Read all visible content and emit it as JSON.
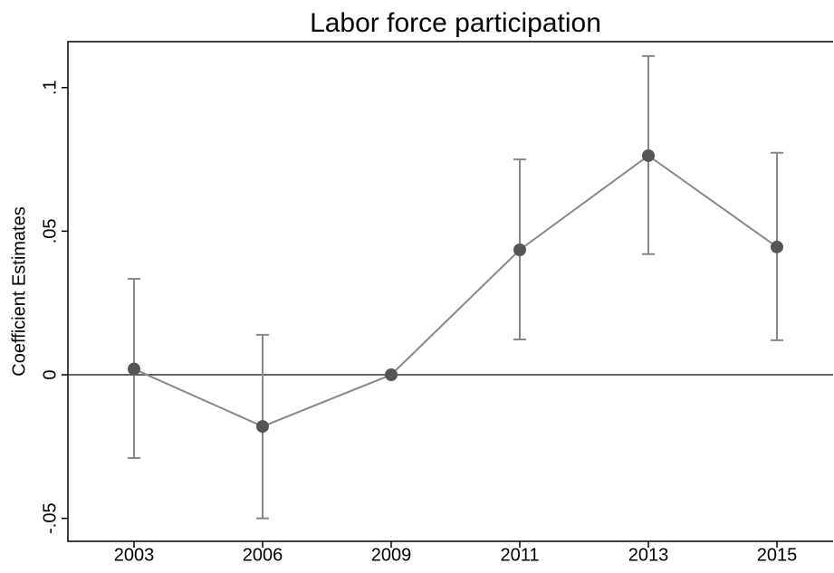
{
  "chart_data": {
    "type": "line",
    "title": "Labor force participation",
    "y_label": "Coefficient Estimates",
    "categories": [
      "2003",
      "2006",
      "2009",
      "2011",
      "2013",
      "2015"
    ],
    "series": [
      {
        "color": "#888888",
        "marker_color": "#555555",
        "values": [
          0.002,
          -0.018,
          0,
          0.0435,
          0.0763,
          0.0445
        ],
        "lower": [
          -0.029,
          -0.05,
          null,
          0.0123,
          0.042,
          0.012
        ],
        "upper": [
          0.0334,
          0.0139,
          null,
          0.075,
          0.111,
          0.0773
        ]
      }
    ],
    "ylim": [
      -0.058,
      0.116
    ],
    "yticks": [
      {
        "value": -0.05,
        "label": "-.05"
      },
      0,
      {
        "value": 0.05,
        "label": ".05"
      },
      {
        "value": 0.1,
        "label": ".1"
      }
    ],
    "reference_line": 0
  }
}
